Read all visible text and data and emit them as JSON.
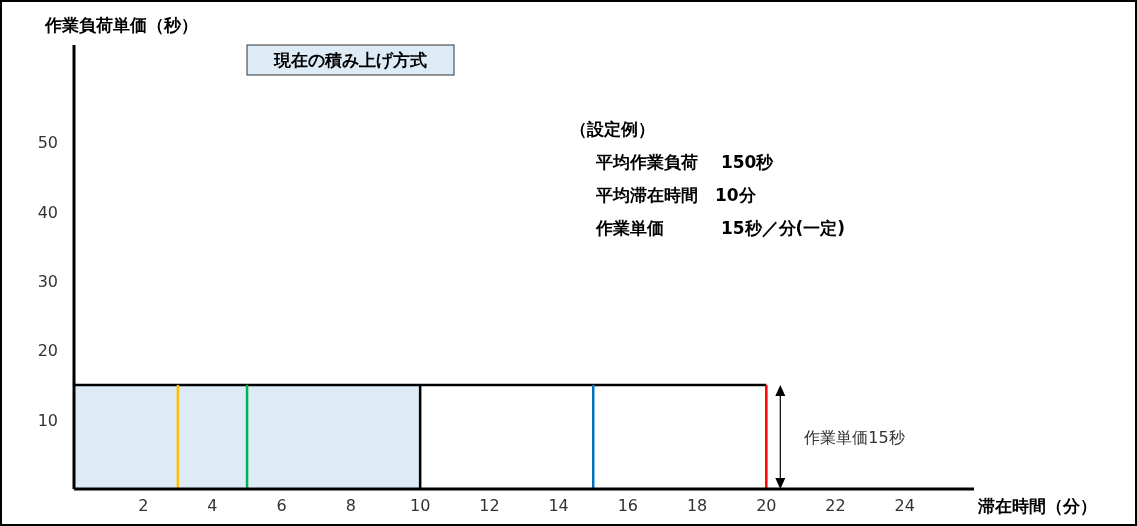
{
  "chart_data": {
    "type": "line",
    "title": "現在の積み上げ方式",
    "xlabel": "滞在時間（分）",
    "ylabel": "作業負荷単価（秒）",
    "xlim": [
      0,
      26
    ],
    "ylim": [
      0,
      64
    ],
    "xticks": [
      2,
      4,
      6,
      8,
      10,
      12,
      14,
      16,
      18,
      20,
      22,
      24
    ],
    "yticks": [
      10,
      20,
      30,
      40,
      50
    ],
    "series": [
      {
        "type": "area",
        "color": "#ddebf7",
        "x": [
          0,
          10
        ],
        "values": [
          15,
          15
        ]
      },
      {
        "color": "#000000",
        "x": [
          0,
          20
        ],
        "values": [
          15,
          15
        ]
      },
      {
        "color": "#ffc000",
        "x": [
          3,
          3
        ],
        "values": [
          0,
          15
        ]
      },
      {
        "color": "#00b050",
        "x": [
          5,
          5
        ],
        "values": [
          0,
          15
        ]
      },
      {
        "color": "#000000",
        "x": [
          10,
          10
        ],
        "values": [
          0,
          15
        ]
      },
      {
        "color": "#0070c0",
        "x": [
          15,
          15
        ],
        "values": [
          0,
          15
        ]
      },
      {
        "color": "#ff0000",
        "x": [
          20,
          20
        ],
        "values": [
          0,
          15
        ]
      }
    ],
    "annotations": [
      "（設定例）",
      "平均作業負荷　 150秒",
      "平均滞在時間　10分",
      "作業単価　　　 15秒／分(一定)",
      {
        "text": "作業単価15秒",
        "x": 20,
        "y": 7.5
      }
    ],
    "grid": false,
    "line_style": "solid"
  }
}
